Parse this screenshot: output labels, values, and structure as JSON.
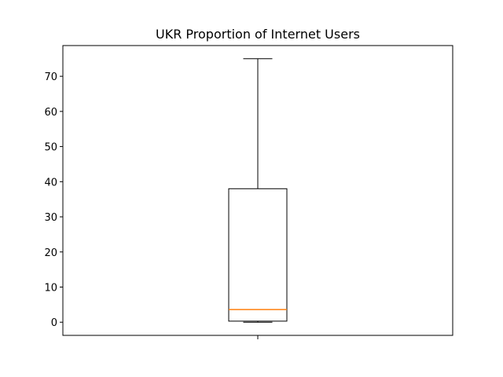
{
  "chart_data": {
    "type": "box",
    "title": "UKR Proportion of Internet Users",
    "xlabel": "",
    "ylabel": "",
    "ylim": [
      -3.75,
      78.75
    ],
    "yticks": [
      0,
      10,
      20,
      30,
      40,
      50,
      60,
      70
    ],
    "x_tick_labels": [
      ""
    ],
    "boxes": [
      {
        "min": 0,
        "q1": 0.3,
        "median": 3.6,
        "q3": 38,
        "max": 75
      }
    ],
    "colors": {
      "box": "#000000",
      "median": "#ff7f0e"
    },
    "grid": false,
    "legend": "none"
  }
}
